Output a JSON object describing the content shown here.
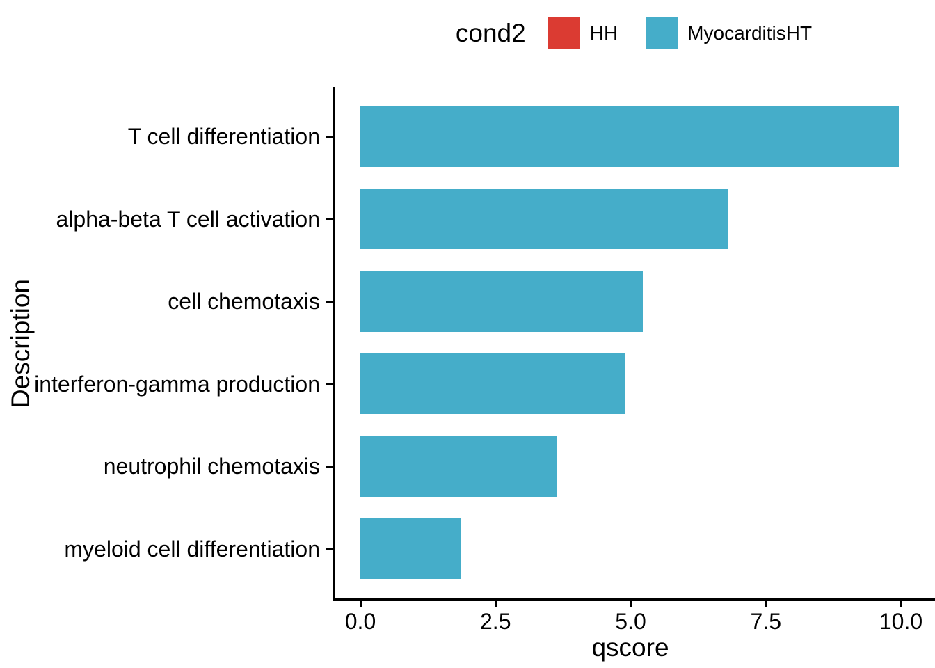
{
  "legend": {
    "title": "cond2",
    "items": [
      {
        "label": "HH",
        "color": "#DB3B32"
      },
      {
        "label": "MyocarditisHT",
        "color": "#45ADC9"
      }
    ]
  },
  "chart_data": {
    "type": "bar",
    "orientation": "horizontal",
    "title": "",
    "xlabel": "qscore",
    "ylabel": "Description",
    "categories": [
      "T cell differentiation",
      "alpha-beta T cell activation",
      "cell chemotaxis",
      "interferon-gamma production",
      "neutrophil chemotaxis",
      "myeloid cell differentiation"
    ],
    "series": [
      {
        "name": "MyocarditisHT",
        "color": "#45ADC9",
        "values": [
          9.96,
          6.81,
          5.22,
          4.89,
          3.64,
          1.87
        ]
      }
    ],
    "xlim": [
      0,
      10
    ],
    "xticks": [
      0.0,
      2.5,
      5.0,
      7.5,
      10.0
    ],
    "xtick_labels": [
      "0.0",
      "2.5",
      "5.0",
      "7.5",
      "10.0"
    ],
    "grid": false,
    "legend_position": "top",
    "background": "#ffffff",
    "axis_color": "#000000",
    "text_color": "#000000"
  }
}
